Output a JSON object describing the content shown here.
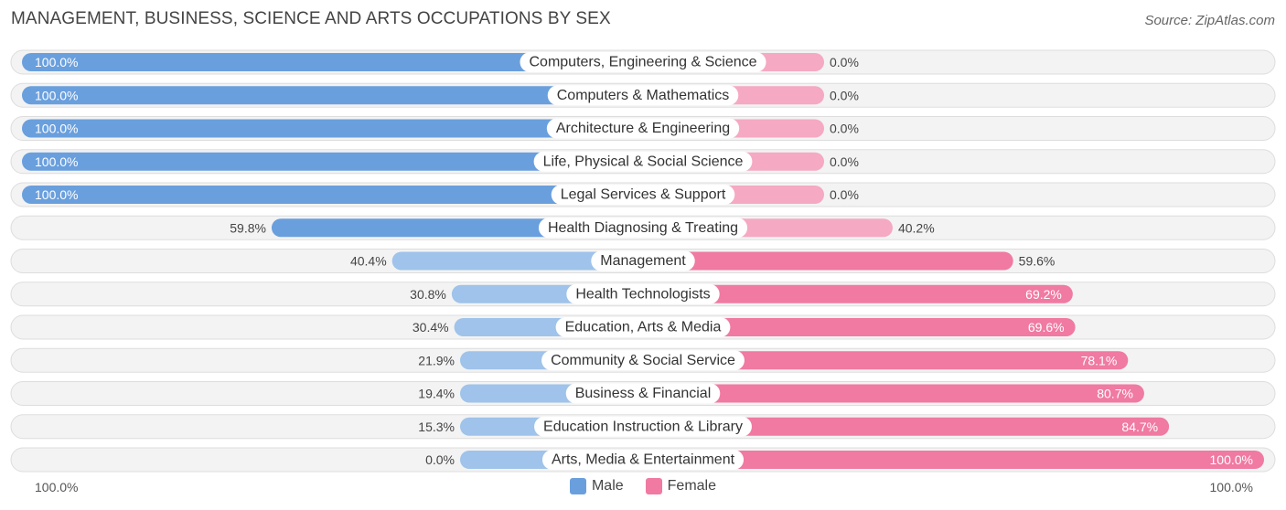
{
  "title": "MANAGEMENT, BUSINESS, SCIENCE AND ARTS OCCUPATIONS BY SEX",
  "source": "Source: ZipAtlas.com",
  "colors": {
    "male_strong": "#6a9fdd",
    "male_light": "#9fc3ea",
    "female_strong": "#f07aa1",
    "female_light": "#f5a9c2",
    "track": "#efefef",
    "track_border": "#dddddd"
  },
  "legend": {
    "male": "Male",
    "female": "Female"
  },
  "axis": {
    "left": "100.0%",
    "right": "100.0%"
  },
  "chart_data": {
    "type": "bar",
    "orientation": "horizontal-diverging",
    "categories": [
      "Computers, Engineering & Science",
      "Computers & Mathematics",
      "Architecture & Engineering",
      "Life, Physical & Social Science",
      "Legal Services & Support",
      "Health Diagnosing & Treating",
      "Management",
      "Health Technologists",
      "Education, Arts & Media",
      "Community & Social Service",
      "Business & Financial",
      "Education Instruction & Library",
      "Arts, Media & Entertainment"
    ],
    "series": [
      {
        "name": "Male",
        "values": [
          100.0,
          100.0,
          100.0,
          100.0,
          100.0,
          59.8,
          40.4,
          30.8,
          30.4,
          21.9,
          19.4,
          15.3,
          0.0
        ],
        "labels": [
          "100.0%",
          "100.0%",
          "100.0%",
          "100.0%",
          "100.0%",
          "59.8%",
          "40.4%",
          "30.8%",
          "30.4%",
          "21.9%",
          "19.4%",
          "15.3%",
          "0.0%"
        ]
      },
      {
        "name": "Female",
        "values": [
          0.0,
          0.0,
          0.0,
          0.0,
          0.0,
          40.2,
          59.6,
          69.2,
          69.6,
          78.1,
          80.7,
          84.7,
          100.0
        ],
        "labels": [
          "0.0%",
          "0.0%",
          "0.0%",
          "0.0%",
          "0.0%",
          "40.2%",
          "59.6%",
          "69.2%",
          "69.6%",
          "78.1%",
          "80.7%",
          "84.7%",
          "100.0%"
        ]
      }
    ],
    "xlim": [
      0,
      100
    ],
    "legend_position": "bottom-center"
  }
}
